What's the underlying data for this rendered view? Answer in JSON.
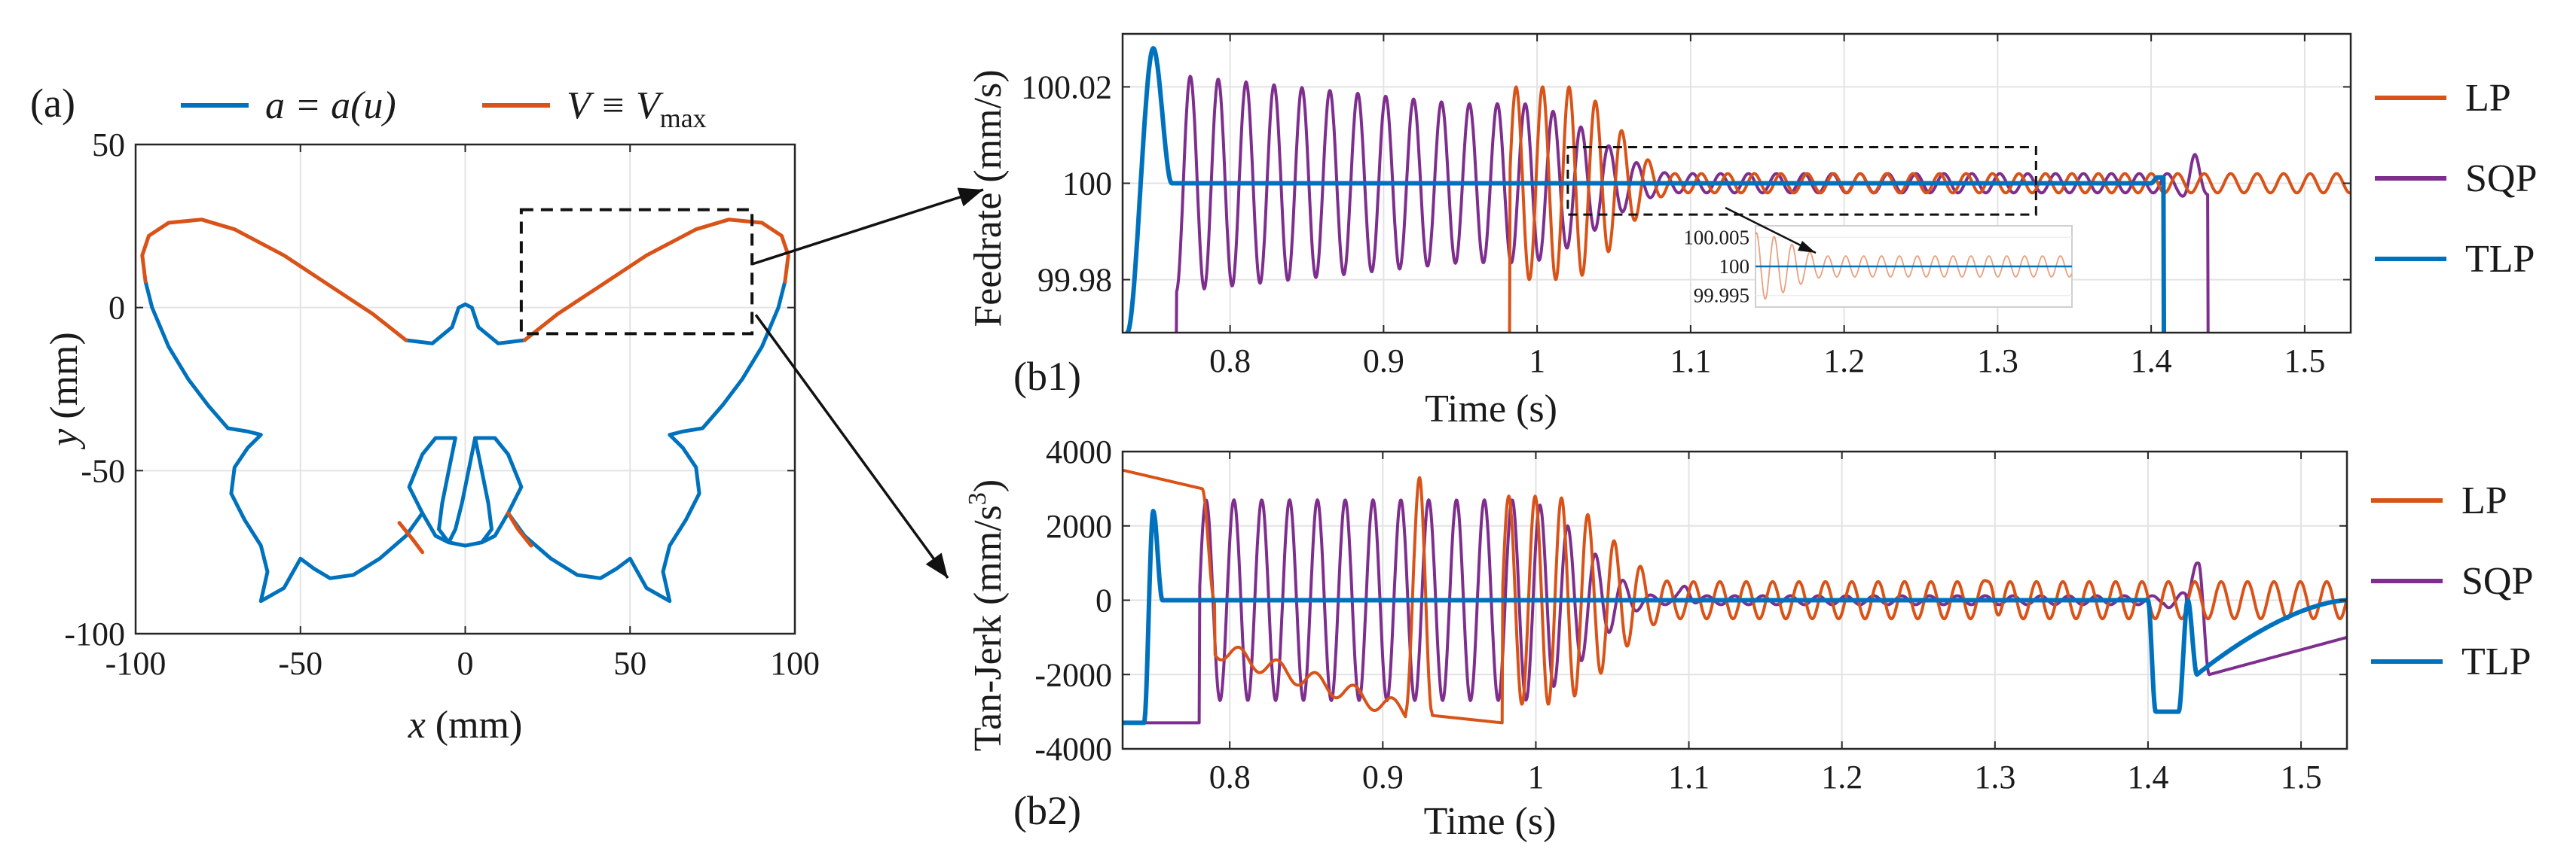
{
  "colors": {
    "blue": "#0072BD",
    "orange": "#D95319",
    "purple": "#7E2F8E"
  },
  "chart_data": [
    {
      "panel": "(a)",
      "type": "line",
      "xlabel_var": "x",
      "xlabel_unit": "(mm)",
      "ylabel_var": "y",
      "ylabel_unit": "(mm)",
      "xlim": [
        -100,
        100
      ],
      "ylim": [
        -100,
        50
      ],
      "xticks": [
        -100,
        -50,
        0,
        50,
        100
      ],
      "yticks": [
        50,
        0,
        -50,
        -100
      ],
      "tick_labels_x": [
        "-100",
        "-50",
        "0",
        "50",
        "100"
      ],
      "tick_labels_y": [
        "50",
        "0",
        "-50",
        "-100"
      ],
      "grid": true,
      "legend_position": "top",
      "series": [
        {
          "name": "a = a(u)",
          "color": "blue",
          "segments": [
            [
              [
                -18,
                -10
              ],
              [
                -10,
                -11
              ],
              [
                -4,
                -6
              ],
              [
                -2,
                0
              ],
              [
                0,
                1
              ],
              [
                2,
                0
              ],
              [
                4,
                -6
              ],
              [
                10,
                -11
              ],
              [
                18,
                -10
              ]
            ],
            [
              [
                -97,
                8
              ],
              [
                -95,
                0
              ],
              [
                -90,
                -12
              ],
              [
                -84,
                -22
              ],
              [
                -78,
                -30
              ],
              [
                -72,
                -37
              ],
              [
                -66,
                -38
              ],
              [
                -62,
                -39
              ],
              [
                -66,
                -43
              ],
              [
                -70,
                -49
              ],
              [
                -71,
                -57
              ],
              [
                -67,
                -65
              ],
              [
                -62,
                -73
              ],
              [
                -60,
                -81
              ],
              [
                -62,
                -90
              ],
              [
                -55,
                -86
              ],
              [
                -50,
                -77
              ],
              [
                -46,
                -80
              ],
              [
                -41,
                -83
              ],
              [
                -34,
                -82
              ],
              [
                -26,
                -77
              ],
              [
                -18,
                -70
              ],
              [
                -13,
                -63
              ]
            ],
            [
              [
                -3,
                -40
              ],
              [
                -5,
                -50
              ],
              [
                -7,
                -60
              ],
              [
                -8,
                -68
              ],
              [
                -5,
                -72
              ],
              [
                0,
                -73
              ],
              [
                5,
                -72
              ],
              [
                8,
                -68
              ],
              [
                7,
                -60
              ],
              [
                5,
                -50
              ],
              [
                3,
                -40
              ],
              [
                1,
                -50
              ],
              [
                -1,
                -60
              ],
              [
                -3,
                -68
              ],
              [
                -5,
                -72
              ],
              [
                -9,
                -70
              ],
              [
                -13,
                -63
              ],
              [
                -17,
                -55
              ],
              [
                -13,
                -45
              ],
              [
                -9,
                -40
              ],
              [
                -5,
                -40
              ],
              [
                -3,
                -40
              ]
            ],
            [
              [
                13,
                -63
              ],
              [
                18,
                -70
              ],
              [
                26,
                -77
              ],
              [
                34,
                -82
              ],
              [
                41,
                -83
              ],
              [
                46,
                -80
              ],
              [
                50,
                -77
              ],
              [
                55,
                -86
              ],
              [
                62,
                -90
              ],
              [
                60,
                -81
              ],
              [
                62,
                -73
              ],
              [
                67,
                -65
              ],
              [
                71,
                -57
              ],
              [
                70,
                -49
              ],
              [
                66,
                -43
              ],
              [
                62,
                -39
              ],
              [
                66,
                -38
              ],
              [
                72,
                -37
              ],
              [
                78,
                -30
              ],
              [
                84,
                -22
              ],
              [
                90,
                -12
              ],
              [
                95,
                0
              ],
              [
                97,
                8
              ]
            ],
            [
              [
                3,
                -40
              ],
              [
                5,
                -40
              ],
              [
                9,
                -40
              ],
              [
                13,
                -45
              ],
              [
                17,
                -55
              ],
              [
                13,
                -63
              ],
              [
                9,
                -70
              ],
              [
                5,
                -72
              ]
            ]
          ]
        },
        {
          "name": "V ≡ V_max",
          "color": "orange",
          "segments": [
            [
              [
                -97,
                8
              ],
              [
                -98,
                16
              ],
              [
                -96,
                22
              ],
              [
                -90,
                26
              ],
              [
                -80,
                27
              ],
              [
                -70,
                24
              ],
              [
                -55,
                16
              ],
              [
                -40,
                6
              ],
              [
                -28,
                -2
              ],
              [
                -18,
                -10
              ]
            ],
            [
              [
                18,
                -10
              ],
              [
                28,
                -2
              ],
              [
                40,
                6
              ],
              [
                55,
                16
              ],
              [
                70,
                24
              ],
              [
                80,
                27
              ],
              [
                90,
                26
              ],
              [
                96,
                22
              ],
              [
                98,
                16
              ],
              [
                97,
                8
              ]
            ],
            [
              [
                -20,
                -66
              ],
              [
                -16,
                -71
              ],
              [
                -13,
                -75
              ]
            ],
            [
              [
                13,
                -63
              ],
              [
                16,
                -68
              ],
              [
                20,
                -73
              ]
            ]
          ]
        }
      ],
      "zoom_box": {
        "x": [
          17,
          87
        ],
        "y": [
          -8,
          30
        ]
      }
    },
    {
      "panel": "(b1)",
      "type": "line",
      "xlabel": "Time",
      "xunit": "(s)",
      "ylabel": "Feedrate",
      "yunit": "(mm/s)",
      "xlim": [
        0.73,
        1.53
      ],
      "ylim": [
        99.969,
        100.031
      ],
      "xticks": [
        0.8,
        0.9,
        1,
        1.1,
        1.2,
        1.3,
        1.4,
        1.5
      ],
      "tick_labels_x": [
        "0.8",
        "0.9",
        "1",
        "1.1",
        "1.2",
        "1.3",
        "1.4",
        "1.5"
      ],
      "yticks": [
        100.02,
        100,
        99.98
      ],
      "tick_labels_y": [
        "100.02",
        "100",
        "99.98"
      ],
      "grid": true,
      "legend": [
        "LP",
        "SQP",
        "TLP"
      ],
      "legend_position": "right, outside",
      "series": [
        {
          "name": "LP",
          "color": "orange",
          "description": "rises at 0.98 s, oscillates ±0.02 around 100 decaying to ±0.002 after 1.1 s"
        },
        {
          "name": "SQP",
          "color": "purple",
          "description": "oscillates ±0.0225 from 0.765 s, decays to ~±0.002 near 1.1 s, drops at 1.435 s"
        },
        {
          "name": "TLP",
          "color": "blue",
          "description": "spike to 100.028 at 0.75 s, flat at 100, drops at 1.41 s"
        }
      ],
      "zoom_box": {
        "x": [
          1.02,
          1.325
        ],
        "y": [
          99.9935,
          100.0075
        ]
      },
      "inset": {
        "yticks": [
          100.005,
          100,
          99.995
        ],
        "tick_labels_y": [
          "100.005",
          "100",
          "99.995"
        ]
      }
    },
    {
      "panel": "(b2)",
      "type": "line",
      "xlabel": "Time",
      "xunit": "(s)",
      "ylabel": "Tan-Jerk",
      "yunit": "(mm/s",
      "yunit_exp": "3",
      "yunit_close": ")",
      "xlim": [
        0.73,
        1.53
      ],
      "ylim": [
        -4000,
        4000
      ],
      "xticks": [
        0.8,
        0.9,
        1,
        1.1,
        1.2,
        1.3,
        1.4,
        1.5
      ],
      "tick_labels_x": [
        "0.8",
        "0.9",
        "1",
        "1.1",
        "1.2",
        "1.3",
        "1.4",
        "1.5"
      ],
      "yticks": [
        4000,
        2000,
        0,
        -2000,
        -4000
      ],
      "tick_labels_y": [
        "4000",
        "2000",
        "0",
        "-2000",
        "-4000"
      ],
      "grid": true,
      "legend": [
        "LP",
        "SQP",
        "TLP"
      ],
      "legend_position": "right, outside",
      "series": [
        {
          "name": "LP",
          "color": "orange",
          "description": "3500 declining to 3000 until 0.78 s, ramps to -3300, oscillates ±3000 from 0.92 s decaying to ±700"
        },
        {
          "name": "SQP",
          "color": "purple",
          "description": "-3300 until 0.78 s, oscillates ±2700 decaying to ~±100, spike at 1.43 s then recovers from -2000"
        },
        {
          "name": "TLP",
          "color": "blue",
          "description": "-3300 until 0.75 s, spike to 2400, flat at 0, dip to -3000 at 1.40 s, recovers to 0"
        }
      ]
    }
  ],
  "labels": {
    "panel_a": "(a)",
    "panel_b1": "(b1)",
    "panel_b2": "(b2)",
    "legend_a_blue": "a = a(u)",
    "legend_a_orange_main": "V ≡ V",
    "legend_a_orange_sub": "max"
  }
}
